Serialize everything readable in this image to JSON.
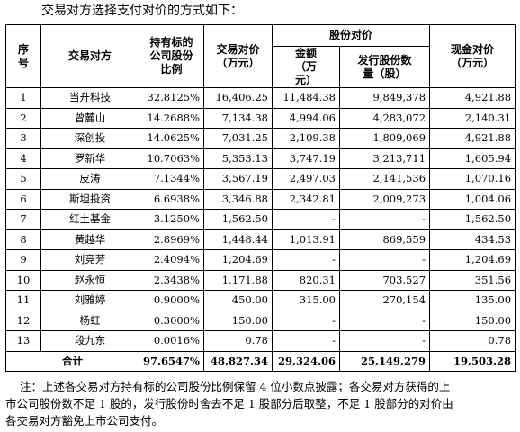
{
  "intro_text": "交易对方选择支付对价的方式如下：",
  "headers": {
    "seq": "序号",
    "counterparty": "交易对方",
    "ratio": "持有标的公司股份比例",
    "total": "交易对价（万元）",
    "share_group": "股份对价",
    "share_amount": "金额（万元）",
    "share_count": "发行股份数量（股）",
    "cash": "现金对价（万元）"
  },
  "rows": [
    {
      "seq": "1",
      "name": "当升科技",
      "ratio": "32.8125%",
      "total": "16,406.25",
      "share_amount": "11,484.38",
      "share_count": "9,849,378",
      "cash": "4,921.88"
    },
    {
      "seq": "2",
      "name": "曾麓山",
      "ratio": "14.2688%",
      "total": "7,134.38",
      "share_amount": "4,994.06",
      "share_count": "4,283,072",
      "cash": "2,140.31"
    },
    {
      "seq": "3",
      "name": "深创投",
      "ratio": "14.0625%",
      "total": "7,031.25",
      "share_amount": "2,109.38",
      "share_count": "1,809,069",
      "cash": "4,921.88"
    },
    {
      "seq": "4",
      "name": "罗新华",
      "ratio": "10.7063%",
      "total": "5,353.13",
      "share_amount": "3,747.19",
      "share_count": "3,213,711",
      "cash": "1,605.94"
    },
    {
      "seq": "5",
      "name": "皮涛",
      "ratio": "7.1344%",
      "total": "3,567.19",
      "share_amount": "2,497.03",
      "share_count": "2,141,536",
      "cash": "1,070.16"
    },
    {
      "seq": "6",
      "name": "斯坦投资",
      "ratio": "6.6938%",
      "total": "3,346.88",
      "share_amount": "2,342.81",
      "share_count": "2,009,273",
      "cash": "1,004.06"
    },
    {
      "seq": "7",
      "name": "红土基金",
      "ratio": "3.1250%",
      "total": "1,562.50",
      "share_amount": "-",
      "share_count": "-",
      "cash": "1,562.50"
    },
    {
      "seq": "8",
      "name": "黄越华",
      "ratio": "2.8969%",
      "total": "1,448.44",
      "share_amount": "1,013.91",
      "share_count": "869,559",
      "cash": "434.53"
    },
    {
      "seq": "9",
      "name": "刘竞芳",
      "ratio": "2.4094%",
      "total": "1,204.69",
      "share_amount": "-",
      "share_count": "-",
      "cash": "1,204.69"
    },
    {
      "seq": "10",
      "name": "赵永恒",
      "ratio": "2.3438%",
      "total": "1,171.88",
      "share_amount": "820.31",
      "share_count": "703,527",
      "cash": "351.56"
    },
    {
      "seq": "11",
      "name": "刘雅婷",
      "ratio": "0.9000%",
      "total": "450.00",
      "share_amount": "315.00",
      "share_count": "270,154",
      "cash": "135.00"
    },
    {
      "seq": "12",
      "name": "杨虹",
      "ratio": "0.3000%",
      "total": "150.00",
      "share_amount": "-",
      "share_count": "-",
      "cash": "150.00"
    },
    {
      "seq": "13",
      "name": "段九东",
      "ratio": "0.0016%",
      "total": "0.78",
      "share_amount": "-",
      "share_count": "-",
      "cash": "0.78"
    }
  ],
  "totals": {
    "label": "合计",
    "ratio": "97.6547%",
    "total": "48,827.34",
    "share_amount": "29,324.06",
    "share_count": "25,149,279",
    "cash": "19,503.28"
  },
  "note_lines": [
    "注：上述各交易对方持有标的公司股份比例保留 4 位小数点披露；各交易对方获得的上",
    "市公司股份数不足 1 股的，发行股份时舍去不足 1 股部分后取整，不足 1 股部分的对价由",
    "各交易对方豁免上市公司支付。"
  ]
}
